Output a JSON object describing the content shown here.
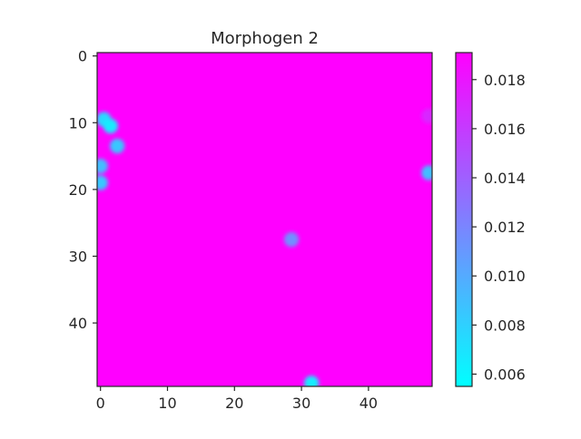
{
  "chart_data": {
    "type": "heatmap",
    "title": "Morphogen 2",
    "xlabel": "",
    "ylabel": "",
    "grid_shape": [
      50,
      50
    ],
    "xlim": [
      -0.5,
      49.5
    ],
    "ylim": [
      49.5,
      -0.5
    ],
    "x_ticks": [
      0,
      10,
      20,
      30,
      40
    ],
    "y_ticks": [
      0,
      10,
      20,
      30,
      40
    ],
    "colormap": "cool",
    "colorbar": {
      "range": [
        0.0055,
        0.0191
      ],
      "ticks": [
        "0.006",
        "0.008",
        "0.010",
        "0.012",
        "0.014",
        "0.016",
        "0.018"
      ],
      "tick_values": [
        0.006,
        0.008,
        0.01,
        0.012,
        0.014,
        0.016,
        0.018
      ]
    },
    "background_value": 0.0191,
    "low_spots": [
      {
        "x": 0.5,
        "y": 9.5,
        "value": 0.0075
      },
      {
        "x": 1.5,
        "y": 10.5,
        "value": 0.0065
      },
      {
        "x": 2.5,
        "y": 13.5,
        "value": 0.0085
      },
      {
        "x": 0,
        "y": 16.5,
        "value": 0.009
      },
      {
        "x": 0,
        "y": 19,
        "value": 0.0085
      },
      {
        "x": 28.5,
        "y": 27.5,
        "value": 0.0115
      },
      {
        "x": 49,
        "y": 17.5,
        "value": 0.009
      },
      {
        "x": 49,
        "y": 9,
        "value": 0.017
      },
      {
        "x": 31.5,
        "y": 49,
        "value": 0.0065
      }
    ],
    "colors": {
      "cmap_low": "#00ffff",
      "cmap_high": "#ff00ff",
      "axis": "#262626",
      "text": "#262626"
    }
  }
}
